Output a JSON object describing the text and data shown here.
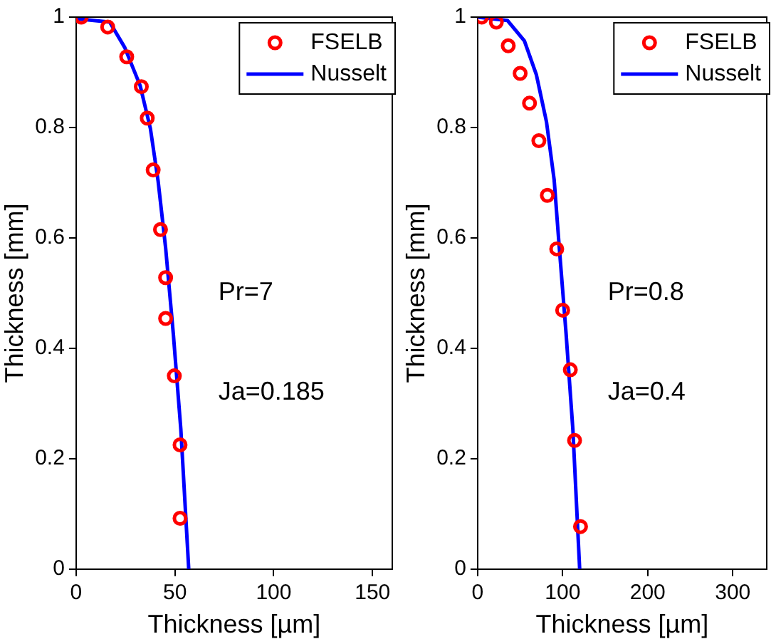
{
  "chart_data": [
    {
      "type": "scatter",
      "xlabel": "Thickness [µm]",
      "ylabel": "Thickness [mm]",
      "xlim": [
        0,
        160
      ],
      "ylim": [
        0,
        1
      ],
      "xticks": [
        0,
        50,
        100,
        150
      ],
      "yticks": [
        0,
        0.2,
        0.4,
        0.6,
        0.8,
        1
      ],
      "grid": false,
      "legend": "top right",
      "annotations": [
        "Pr=7",
        "Ja=0.185"
      ],
      "series": [
        {
          "name": "FSELB",
          "marker": "circle",
          "color": "#ff0000",
          "x": [
            2.6,
            16,
            25.6,
            33,
            36,
            39,
            42.7,
            45.3,
            45.3,
            49.7,
            52.6,
            52.6
          ],
          "values": [
            1.0,
            0.982,
            0.928,
            0.874,
            0.817,
            0.723,
            0.615,
            0.528,
            0.454,
            0.35,
            0.225,
            0.092
          ]
        },
        {
          "name": "Nusselt",
          "type": "line",
          "marker": "none",
          "line_style": "solid",
          "color": "#0000ff",
          "x": [
            0,
            17,
            24.6,
            32.4,
            37.6,
            41.5,
            45.3,
            49.2,
            53,
            57
          ],
          "values": [
            0.997,
            0.991,
            0.945,
            0.876,
            0.798,
            0.703,
            0.582,
            0.426,
            0.253,
            0
          ]
        }
      ]
    },
    {
      "type": "scatter",
      "xlabel": "Thickness [µm]",
      "ylabel": "Thickness [mm]",
      "xlim": [
        0,
        340
      ],
      "ylim": [
        0,
        1
      ],
      "xticks": [
        0,
        100,
        200,
        300
      ],
      "yticks": [
        0,
        0.2,
        0.4,
        0.6,
        0.8,
        1
      ],
      "grid": false,
      "legend": "top right",
      "annotations": [
        "Pr=0.8",
        "Ja=0.4"
      ],
      "series": [
        {
          "name": "FSELB",
          "marker": "circle",
          "color": "#ff0000",
          "x": [
            4.6,
            22,
            36,
            50,
            61,
            72,
            82,
            93,
            100,
            109,
            114,
            121
          ],
          "values": [
            1.0,
            0.991,
            0.948,
            0.898,
            0.844,
            0.776,
            0.677,
            0.58,
            0.469,
            0.361,
            0.233,
            0.077
          ]
        },
        {
          "name": "Nusselt",
          "type": "line",
          "marker": "none",
          "line_style": "solid",
          "color": "#0000ff",
          "x": [
            0,
            35,
            55,
            69,
            81,
            90,
            96,
            104,
            112,
            120
          ],
          "values": [
            1.0,
            0.994,
            0.957,
            0.896,
            0.81,
            0.705,
            0.583,
            0.427,
            0.253,
            0
          ]
        }
      ]
    }
  ]
}
